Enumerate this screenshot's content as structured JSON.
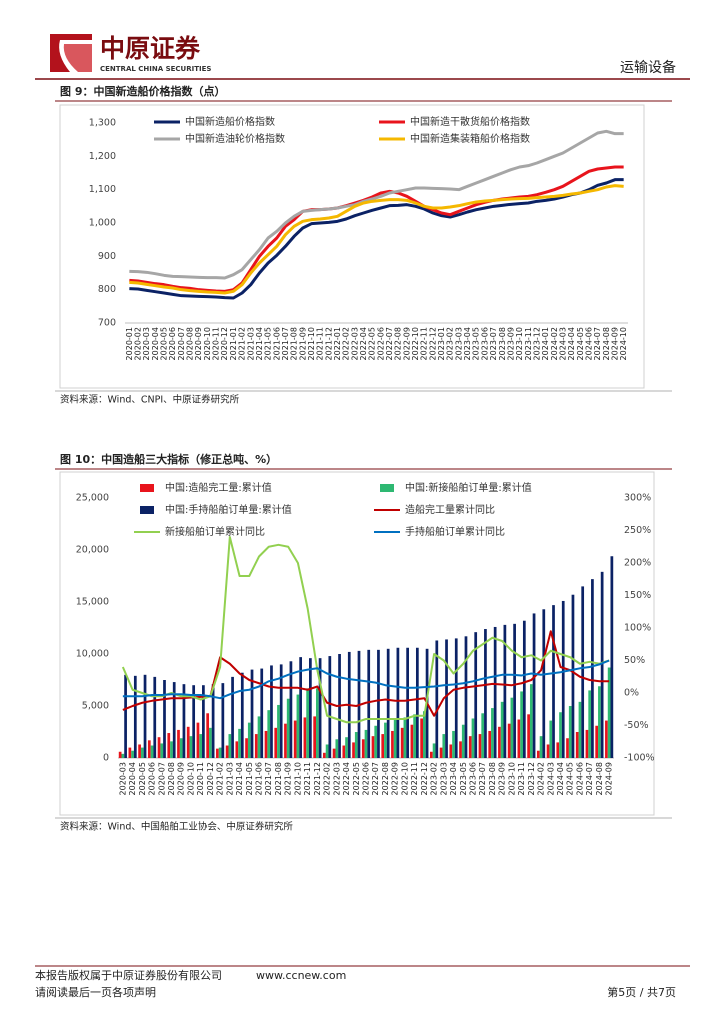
{
  "header": {
    "company": "中原证券",
    "company_en": "CENTRAL CHINA SECURITIES",
    "sector": "运输设备"
  },
  "chart_data": [
    {
      "type": "line",
      "title": "图 9：中国新造船价格指数（点）",
      "source": "资料来源：Wind、CNPI、中原证券研究所",
      "categories": [
        "2020-01",
        "2020-02",
        "2020-03",
        "2020-04",
        "2020-05",
        "2020-06",
        "2020-07",
        "2020-08",
        "2020-09",
        "2020-10",
        "2020-11",
        "2020-12",
        "2021-01",
        "2021-02",
        "2021-03",
        "2021-04",
        "2021-05",
        "2021-06",
        "2021-07",
        "2021-08",
        "2021-09",
        "2021-10",
        "2021-11",
        "2021-12",
        "2022-01",
        "2022-02",
        "2022-03",
        "2022-04",
        "2022-05",
        "2022-06",
        "2022-07",
        "2022-08",
        "2022-09",
        "2022-10",
        "2022-11",
        "2022-12",
        "2023-01",
        "2023-02",
        "2023-03",
        "2023-04",
        "2023-05",
        "2023-06",
        "2023-07",
        "2023-08",
        "2023-09",
        "2023-10",
        "2023-11",
        "2023-12",
        "2024-01",
        "2024-02",
        "2024-03",
        "2024-04",
        "2024-05",
        "2024-06",
        "2024-07",
        "2024-08",
        "2024-09",
        "2024-10"
      ],
      "series": [
        {
          "name": "中国新造船价格指数",
          "color": "#0b2265",
          "type": "line",
          "values": [
            803,
            802,
            798,
            794,
            790,
            786,
            782,
            781,
            780,
            779,
            778,
            776,
            775,
            790,
            815,
            850,
            880,
            903,
            930,
            960,
            985,
            998,
            1000,
            1002,
            1005,
            1012,
            1022,
            1030,
            1038,
            1045,
            1052,
            1053,
            1055,
            1050,
            1042,
            1030,
            1022,
            1018,
            1025,
            1033,
            1040,
            1045,
            1050,
            1053,
            1056,
            1058,
            1060,
            1065,
            1068,
            1072,
            1078,
            1085,
            1090,
            1100,
            1113,
            1120,
            1130,
            1130
          ]
        },
        {
          "name": "中国新造干散货船价格指数",
          "color": "#e8141c",
          "type": "line",
          "values": [
            828,
            826,
            822,
            818,
            815,
            810,
            806,
            804,
            800,
            798,
            796,
            795,
            800,
            820,
            860,
            900,
            930,
            955,
            990,
            1010,
            1035,
            1040,
            1040,
            1042,
            1045,
            1052,
            1060,
            1068,
            1078,
            1090,
            1095,
            1090,
            1080,
            1065,
            1050,
            1040,
            1030,
            1025,
            1035,
            1045,
            1055,
            1062,
            1068,
            1072,
            1075,
            1078,
            1080,
            1085,
            1092,
            1100,
            1110,
            1125,
            1140,
            1155,
            1162,
            1165,
            1168,
            1168
          ]
        },
        {
          "name": "中国新造油轮价格指数",
          "color": "#a6a6a6",
          "type": "line",
          "values": [
            855,
            854,
            852,
            848,
            843,
            840,
            839,
            838,
            837,
            836,
            836,
            835,
            845,
            860,
            890,
            920,
            955,
            975,
            1000,
            1020,
            1035,
            1038,
            1040,
            1042,
            1045,
            1050,
            1055,
            1065,
            1072,
            1080,
            1090,
            1095,
            1100,
            1105,
            1105,
            1104,
            1103,
            1102,
            1100,
            1110,
            1120,
            1130,
            1140,
            1150,
            1160,
            1168,
            1172,
            1180,
            1190,
            1200,
            1210,
            1225,
            1240,
            1255,
            1270,
            1275,
            1268,
            1268
          ]
        },
        {
          "name": "中国新造集装箱船价格指数",
          "color": "#f5b800",
          "type": "line",
          "values": [
            822,
            820,
            816,
            812,
            808,
            805,
            800,
            797,
            795,
            793,
            792,
            790,
            795,
            815,
            850,
            880,
            905,
            930,
            965,
            990,
            1005,
            1010,
            1012,
            1015,
            1020,
            1035,
            1050,
            1060,
            1065,
            1068,
            1070,
            1070,
            1068,
            1060,
            1050,
            1045,
            1045,
            1048,
            1052,
            1058,
            1063,
            1066,
            1068,
            1070,
            1072,
            1073,
            1074,
            1076,
            1078,
            1080,
            1083,
            1087,
            1090,
            1095,
            1100,
            1108,
            1112,
            1110
          ]
        }
      ],
      "ylim": [
        700,
        1300
      ],
      "yticks": [
        700,
        800,
        900,
        {
          "value": 1000,
          "label": "1,000"
        },
        {
          "value": 1100,
          "label": "1,100"
        },
        {
          "value": 1200,
          "label": "1,200"
        },
        {
          "value": 1300,
          "label": "1,300"
        }
      ]
    },
    {
      "type": "bar",
      "title": "图 10：中国造船三大指标（修正总吨、%）",
      "source": "资料来源：Wind、中国船舶工业协会、中原证券研究所",
      "categories": [
        "2020-03",
        "2020-04",
        "2020-05",
        "2020-06",
        "2020-07",
        "2020-08",
        "2020-09",
        "2020-10",
        "2020-11",
        "2020-12",
        "2021-02",
        "2021-03",
        "2021-04",
        "2021-05",
        "2021-06",
        "2021-07",
        "2021-08",
        "2021-09",
        "2021-10",
        "2021-11",
        "2021-12",
        "2022-02",
        "2022-03",
        "2022-04",
        "2022-05",
        "2022-06",
        "2022-07",
        "2022-08",
        "2022-09",
        "2022-10",
        "2022-11",
        "2022-12",
        "2023-02",
        "2023-03",
        "2023-04",
        "2023-05",
        "2023-06",
        "2023-07",
        "2023-08",
        "2023-09",
        "2023-10",
        "2023-11",
        "2023-12",
        "2024-02",
        "2024-03",
        "2024-04",
        "2024-05",
        "2024-06",
        "2024-07",
        "2024-08",
        "2024-09"
      ],
      "series": [
        {
          "name": "中国:造船完工量:累计值",
          "color": "#e8141c",
          "type": "bar",
          "values": [
            600,
            1000,
            1300,
            1700,
            2000,
            2400,
            2700,
            3000,
            3400,
            4300,
            900,
            1200,
            1600,
            1900,
            2300,
            2600,
            2900,
            3300,
            3600,
            3900,
            4000,
            500,
            900,
            1200,
            1500,
            1800,
            2100,
            2300,
            2600,
            2900,
            3200,
            3800,
            600,
            1000,
            1300,
            1600,
            2100,
            2300,
            2600,
            3000,
            3300,
            3700,
            4200,
            700,
            1300,
            1500,
            1900,
            2500,
            2700,
            3100,
            3600
          ]
        },
        {
          "name": "中国:新接船舶订单量:累计值",
          "color": "#2eb872",
          "type": "bar",
          "values": [
            400,
            700,
            1000,
            1200,
            1400,
            1600,
            1900,
            2100,
            2300,
            2900,
            1000,
            2300,
            2800,
            3400,
            4000,
            4600,
            5100,
            5700,
            6100,
            6700,
            6700,
            1300,
            1800,
            2000,
            2500,
            2700,
            3100,
            3400,
            3700,
            3900,
            4200,
            4500,
            1400,
            2300,
            2600,
            3200,
            3800,
            4300,
            4800,
            5400,
            5800,
            6400,
            7100,
            2100,
            3600,
            4400,
            5000,
            5400,
            6500,
            6900,
            8700
          ]
        },
        {
          "name": "中国:手持船舶订单量:累计值",
          "color": "#0b2265",
          "type": "bar",
          "values": [
            8000,
            7900,
            8000,
            7800,
            7500,
            7300,
            7100,
            7000,
            7000,
            7100,
            7200,
            7800,
            8200,
            8500,
            8600,
            8900,
            9000,
            9300,
            9700,
            9600,
            9600,
            9800,
            10000,
            10200,
            10300,
            10400,
            10400,
            10500,
            10600,
            10600,
            10600,
            10500,
            11300,
            11400,
            11500,
            11700,
            12100,
            12400,
            12600,
            12800,
            12900,
            13200,
            13900,
            14300,
            14700,
            15100,
            15700,
            16500,
            17200,
            17900,
            19400
          ]
        },
        {
          "name": "造船完工量累计同比",
          "color": "#c00000",
          "type": "line",
          "axis": "y2",
          "values": [
            -26,
            -20,
            -15,
            -12,
            -10,
            -8,
            -8,
            -7,
            -6,
            -5,
            55,
            45,
            30,
            20,
            15,
            10,
            8,
            8,
            8,
            5,
            10,
            -15,
            -20,
            -18,
            -20,
            -15,
            -12,
            -10,
            -12,
            -12,
            -10,
            -8,
            -35,
            -8,
            5,
            8,
            10,
            12,
            14,
            13,
            12,
            15,
            20,
            35,
            95,
            40,
            35,
            25,
            20,
            18,
            18
          ]
        },
        {
          "name": "新接船舶订单累计同比",
          "color": "#92d050",
          "type": "line",
          "axis": "y2",
          "values": [
            40,
            5,
            0,
            -5,
            -5,
            0,
            -5,
            -5,
            -10,
            -5,
            40,
            240,
            180,
            180,
            210,
            225,
            228,
            225,
            200,
            130,
            35,
            -35,
            -40,
            -45,
            -45,
            -40,
            -40,
            -40,
            -40,
            -40,
            -35,
            -35,
            60,
            50,
            30,
            45,
            65,
            75,
            85,
            80,
            65,
            55,
            58,
            50,
            65,
            60,
            55,
            45,
            48,
            45,
            50
          ]
        },
        {
          "name": "手持船舶订单累计同比",
          "color": "#0070c0",
          "type": "line",
          "axis": "y2",
          "values": [
            -5,
            -5,
            -5,
            -3,
            -3,
            -2,
            -2,
            -3,
            -3,
            -5,
            -8,
            -2,
            3,
            5,
            10,
            18,
            22,
            28,
            33,
            36,
            38,
            30,
            25,
            22,
            20,
            18,
            16,
            12,
            10,
            8,
            8,
            9,
            10,
            12,
            13,
            15,
            18,
            22,
            25,
            28,
            28,
            27,
            30,
            28,
            30,
            32,
            35,
            38,
            40,
            44,
            50
          ]
        }
      ],
      "ylim": [
        0,
        25000
      ],
      "yticks": [
        0,
        {
          "value": 5000,
          "label": "5,000"
        },
        {
          "value": 10000,
          "label": "10,000"
        },
        {
          "value": 15000,
          "label": "15,000"
        },
        {
          "value": 20000,
          "label": "20,000"
        },
        {
          "value": 25000,
          "label": "25,000"
        }
      ],
      "y2lim": [
        -100,
        300
      ],
      "y2ticks": [
        {
          "value": -100,
          "label": "-100%"
        },
        {
          "value": -50,
          "label": "-50%"
        },
        {
          "value": 0,
          "label": "0%"
        },
        {
          "value": 50,
          "label": "50%"
        },
        {
          "value": 100,
          "label": "100%"
        },
        {
          "value": 150,
          "label": "150%"
        },
        {
          "value": 200,
          "label": "200%"
        },
        {
          "value": 250,
          "label": "250%"
        },
        {
          "value": 300,
          "label": "300%"
        }
      ]
    }
  ],
  "footer": {
    "copyright": "本报告版权属于中原证券股份有限公司",
    "website": "www.ccnew.com",
    "disclaimer": "请阅读最后一页各项声明",
    "page": "第5页 / 共7页"
  }
}
